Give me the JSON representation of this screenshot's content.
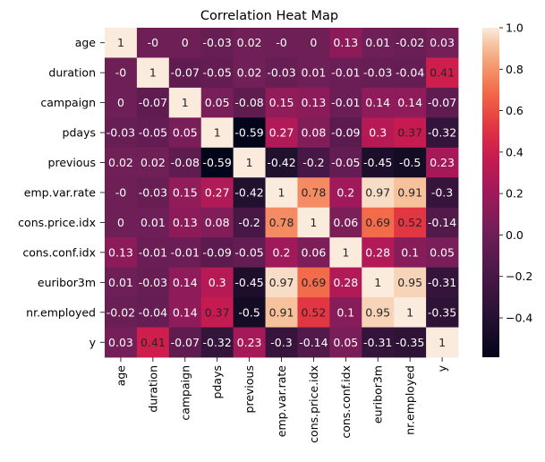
{
  "chart_data": {
    "type": "heatmap",
    "title": "Correlation Heat Map",
    "xlabel": "",
    "ylabel": "",
    "variables": [
      "age",
      "duration",
      "campaign",
      "pdays",
      "previous",
      "emp.var.rate",
      "cons.price.idx",
      "cons.conf.idx",
      "euribor3m",
      "nr.employed",
      "y"
    ],
    "matrix": [
      [
        1,
        0,
        0,
        -0.03,
        0.02,
        0,
        0,
        0.13,
        0.01,
        -0.02,
        0.03
      ],
      [
        0,
        1,
        -0.07,
        -0.05,
        0.02,
        -0.03,
        0.01,
        -0.01,
        -0.03,
        -0.04,
        0.41
      ],
      [
        0,
        -0.07,
        1,
        0.05,
        -0.08,
        0.15,
        0.13,
        -0.01,
        0.14,
        0.14,
        -0.07
      ],
      [
        -0.03,
        -0.05,
        0.05,
        1,
        -0.59,
        0.27,
        0.08,
        -0.09,
        0.3,
        0.37,
        -0.32
      ],
      [
        0.02,
        0.02,
        -0.08,
        -0.59,
        1,
        -0.42,
        -0.2,
        -0.05,
        -0.45,
        -0.5,
        0.23
      ],
      [
        0,
        -0.03,
        0.15,
        0.27,
        -0.42,
        1,
        0.78,
        0.2,
        0.97,
        0.91,
        -0.3
      ],
      [
        0,
        0.01,
        0.13,
        0.08,
        -0.2,
        0.78,
        1,
        0.06,
        0.69,
        0.52,
        -0.14
      ],
      [
        0.13,
        -0.01,
        -0.01,
        -0.09,
        -0.05,
        0.2,
        0.06,
        1,
        0.28,
        0.1,
        0.05
      ],
      [
        0.01,
        -0.03,
        0.14,
        0.3,
        -0.45,
        0.97,
        0.69,
        0.28,
        1,
        0.95,
        -0.31
      ],
      [
        -0.02,
        -0.04,
        0.14,
        0.37,
        -0.5,
        0.91,
        0.52,
        0.1,
        0.95,
        1,
        -0.35
      ],
      [
        0.03,
        0.41,
        -0.07,
        -0.32,
        0.23,
        -0.3,
        -0.14,
        0.05,
        -0.31,
        -0.35,
        1
      ]
    ],
    "colorbar": {
      "colormap": "rocket",
      "range": [
        -0.59,
        1.0
      ],
      "ticks": [
        -0.4,
        -0.2,
        0.0,
        0.2,
        0.4,
        0.6,
        0.8,
        1.0
      ],
      "tick_labels": [
        "−0.4",
        "−0.2",
        "0.0",
        "0.2",
        "0.4",
        "0.6",
        "0.8",
        "1.0"
      ]
    },
    "grid": false,
    "annotations": "cell values shown"
  }
}
